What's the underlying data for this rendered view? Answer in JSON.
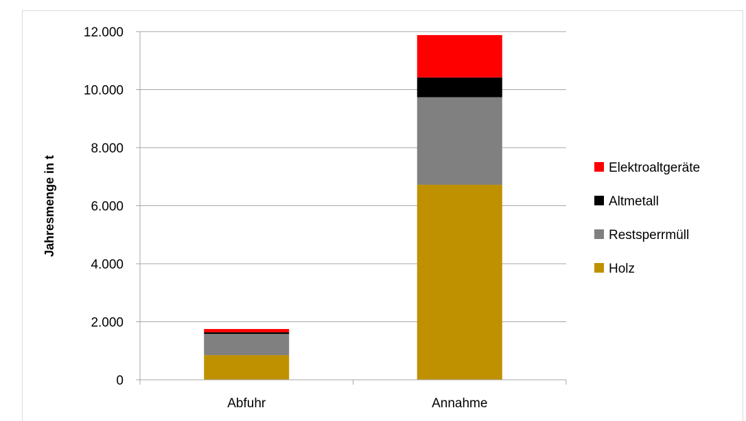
{
  "chart_data": {
    "type": "bar",
    "stacked": true,
    "categories": [
      "Abfuhr",
      "Annahme"
    ],
    "series": [
      {
        "name": "Holz",
        "color": "#bf9000",
        "values": [
          850,
          6720
        ]
      },
      {
        "name": "Restsperrmüll",
        "color": "#808080",
        "values": [
          730,
          3020
        ]
      },
      {
        "name": "Altmetall",
        "color": "#000000",
        "values": [
          60,
          680
        ]
      },
      {
        "name": "Elektroaltgeräte",
        "color": "#ff0000",
        "values": [
          110,
          1460
        ]
      }
    ],
    "title": "",
    "xlabel": "",
    "ylabel": "Jahresmenge in t",
    "ylim": [
      0,
      12000
    ],
    "yticks": [
      0,
      2000,
      4000,
      6000,
      8000,
      10000,
      12000
    ],
    "ytick_labels": [
      "0",
      "2.000",
      "4.000",
      "6.000",
      "8.000",
      "10.000",
      "12.000"
    ],
    "grid": true,
    "legend_position": "right"
  }
}
